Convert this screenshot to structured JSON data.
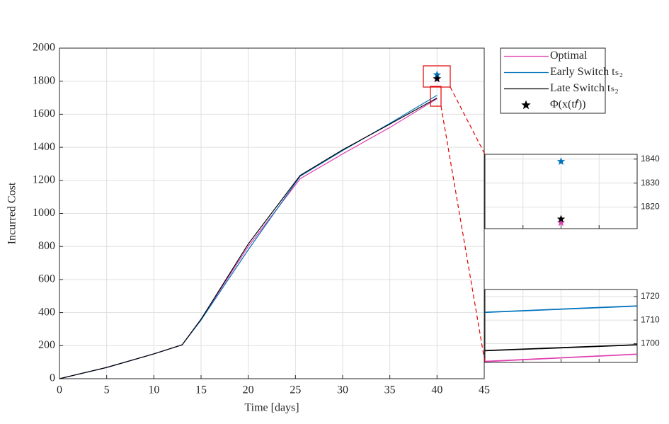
{
  "chart_data": [
    {
      "type": "line",
      "xlabel": "Time [days]",
      "ylabel": "Incurred Cost",
      "x": [
        0,
        5,
        10,
        13,
        15,
        20,
        25.5,
        30,
        35,
        40
      ],
      "series": [
        {
          "name": "Optimal",
          "color": "#e040b0",
          "values": [
            0,
            68,
            150,
            205,
            360,
            800,
            1210,
            1360,
            1520,
            1694
          ]
        },
        {
          "name": "Early Switch tₛ₂",
          "color": "#0072bd",
          "values": [
            0,
            68,
            150,
            205,
            355,
            780,
            1225,
            1380,
            1545,
            1714.5
          ]
        },
        {
          "name": "Late Switch tₛ₂",
          "color": "#000000",
          "values": [
            0,
            68,
            150,
            205,
            360,
            815,
            1230,
            1385,
            1540,
            1698
          ]
        }
      ],
      "stars": {
        "name": "Φ(x(t𝑓))",
        "color": "#000000",
        "x": [
          40,
          40,
          40
        ],
        "values": [
          1839,
          1813.5,
          1815
        ],
        "colors": [
          "#0072bd",
          "#e040b0",
          "#000000"
        ]
      },
      "xlim": [
        0,
        45
      ],
      "xticks": [
        0,
        5,
        10,
        15,
        20,
        25,
        30,
        35,
        40,
        45
      ],
      "ylim": [
        0,
        2000
      ],
      "yticks": [
        0,
        200,
        400,
        600,
        800,
        1000,
        1200,
        1400,
        1600,
        1800,
        2000
      ],
      "grid": true,
      "legend": "outside-top-right"
    },
    {
      "type": "line",
      "x": [
        39.5,
        40.5
      ],
      "series": [],
      "stars": {
        "x": [
          40,
          40,
          40
        ],
        "values": [
          1839,
          1813.5,
          1815
        ],
        "colors": [
          "#0072bd",
          "#e040b0",
          "#000000"
        ]
      },
      "xlim": [
        39.5,
        40.5
      ],
      "xticks": [
        39.75,
        40,
        40.25
      ],
      "ylim": [
        1811,
        1842
      ],
      "yticks": [
        1820,
        1830,
        1840
      ],
      "grid": true,
      "y_axis_side": "right"
    },
    {
      "type": "line",
      "x": [
        39.5,
        40.5
      ],
      "series": [
        {
          "color": "#e040b0",
          "values": [
            1692.4,
            1695.5
          ]
        },
        {
          "color": "#0072bd",
          "values": [
            1713.3,
            1716
          ]
        },
        {
          "color": "#000000",
          "values": [
            1697,
            1699.5
          ]
        }
      ],
      "xlim": [
        39.5,
        40.5
      ],
      "xticks": [
        39.75,
        40,
        40.25
      ],
      "ylim": [
        1692,
        1723
      ],
      "yticks": [
        1700,
        1710,
        1720
      ],
      "grid": true,
      "y_axis_side": "right"
    }
  ]
}
